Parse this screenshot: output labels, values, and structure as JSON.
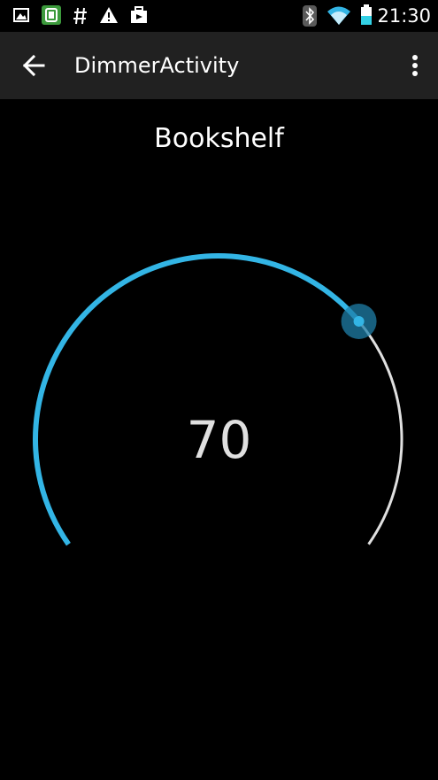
{
  "status_bar": {
    "time": "21:30",
    "left_icons": [
      "image-icon",
      "app-notification-icon",
      "hash-icon",
      "warning-icon",
      "briefcase-icon"
    ],
    "right_icons": [
      "bluetooth-icon",
      "wifi-icon",
      "battery-icon"
    ]
  },
  "app_bar": {
    "title": "DimmerActivity"
  },
  "main": {
    "device_name": "Bookshelf"
  },
  "dimmer": {
    "value": 70,
    "min": 0,
    "max": 100,
    "display_value": "70",
    "active_color": "#33b5e5",
    "track_color": "#e0e0e0",
    "thumb_color": "#1f7fa8"
  }
}
